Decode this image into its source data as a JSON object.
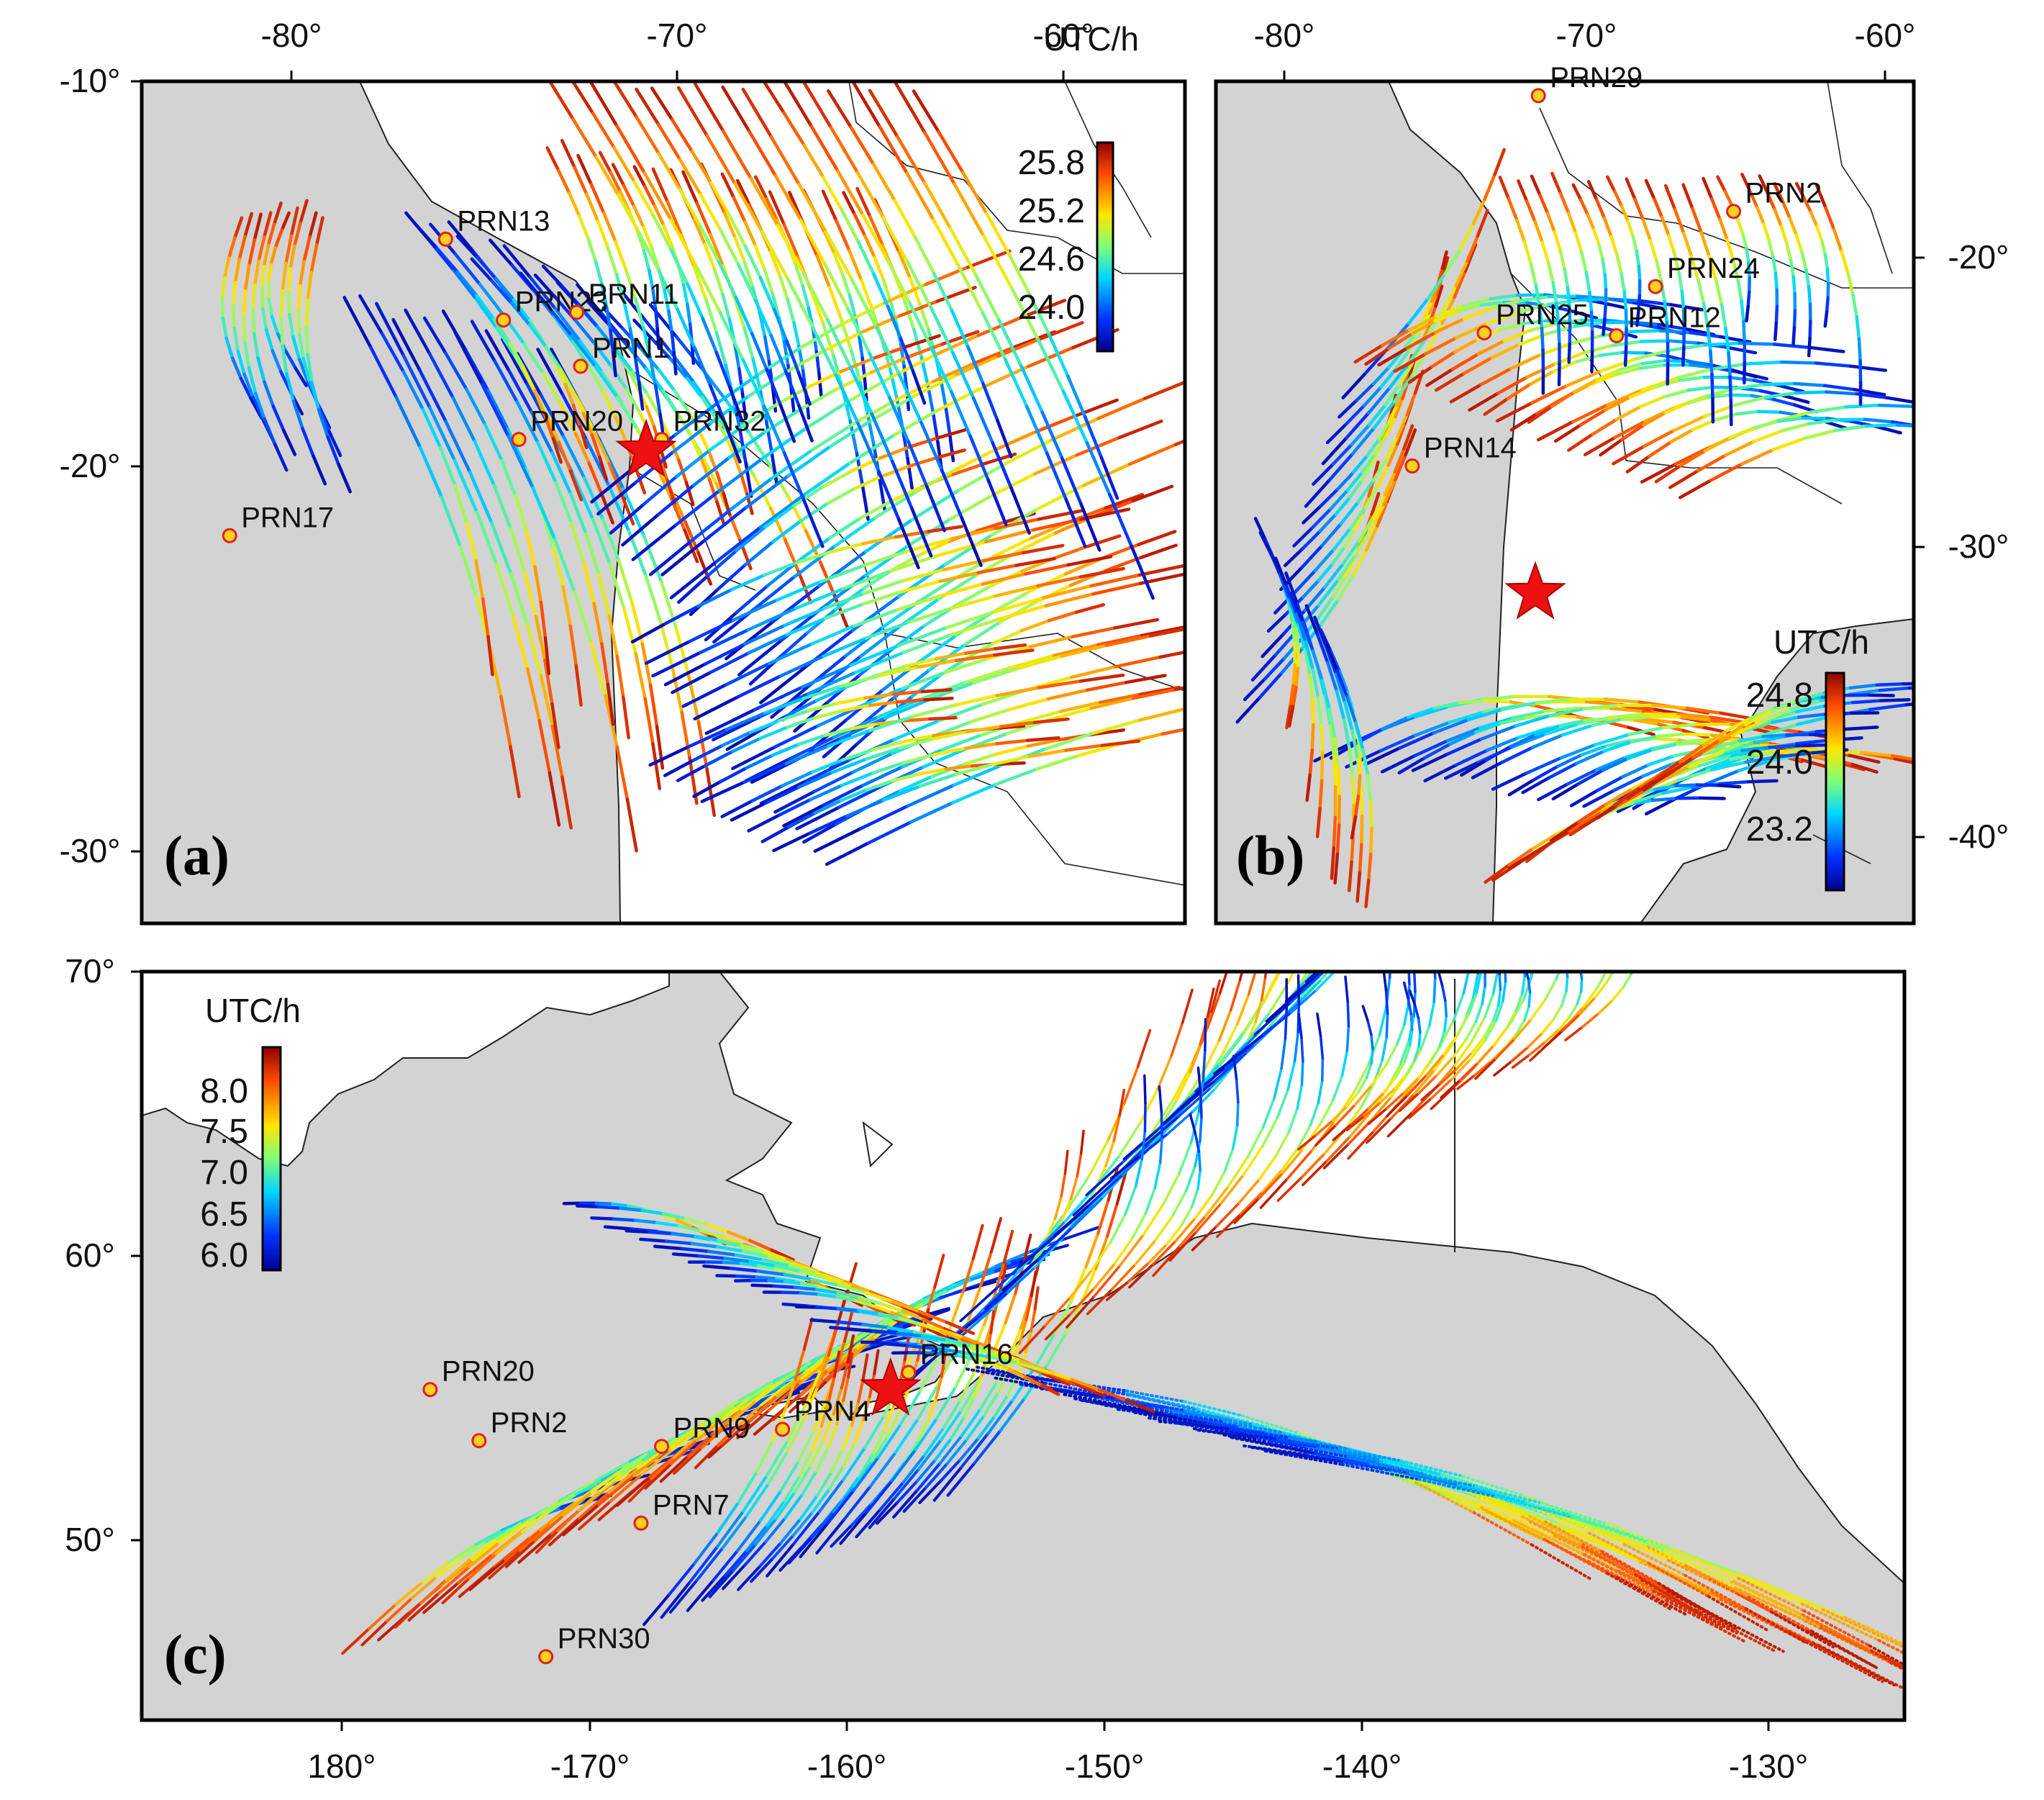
{
  "panels": [
    {
      "id": "a",
      "label": "(a)",
      "x_ticks": [
        "-80°",
        "-70°",
        "-60°"
      ],
      "y_ticks": [
        "-10°",
        "-20°",
        "-30°"
      ],
      "y_tick_side": "left",
      "x_tick_side": "top",
      "colorbar": {
        "title": "UTC/h",
        "ticks": [
          "25.8",
          "25.2",
          "24.6",
          "24.0"
        ],
        "range": [
          23.6,
          26.1
        ]
      },
      "epicenter": {
        "lon": -70.8,
        "lat": -19.6
      },
      "stations": [
        {
          "label": "PRN13",
          "lon": -76.0,
          "lat": -14.1
        },
        {
          "label": "PRN23",
          "lon": -74.5,
          "lat": -16.2
        },
        {
          "label": "PRN11",
          "lon": -72.6,
          "lat": -16.0
        },
        {
          "label": "PRN1",
          "lon": -72.5,
          "lat": -17.4
        },
        {
          "label": "PRN20",
          "lon": -74.1,
          "lat": -19.3
        },
        {
          "label": "PRN32",
          "lon": -70.4,
          "lat": -19.3
        },
        {
          "label": "PRN17",
          "lon": -81.6,
          "lat": -21.8
        }
      ]
    },
    {
      "id": "b",
      "label": "(b)",
      "x_ticks": [
        "-80°",
        "-70°",
        "-60°"
      ],
      "y_ticks": [
        "-20°",
        "-30°",
        "-40°"
      ],
      "y_tick_side": "right",
      "x_tick_side": "top",
      "colorbar": {
        "title": "UTC/h",
        "ticks": [
          "24.8",
          "24.0",
          "23.2"
        ],
        "range": [
          22.5,
          25.1
        ]
      },
      "epicenter": {
        "lon": -71.7,
        "lat": -31.6
      },
      "stations": [
        {
          "label": "PRN29",
          "lon": -71.6,
          "lat": -14.4
        },
        {
          "label": "PRN2",
          "lon": -65.1,
          "lat": -18.4
        },
        {
          "label": "PRN24",
          "lon": -67.7,
          "lat": -21.0
        },
        {
          "label": "PRN25",
          "lon": -73.4,
          "lat": -22.6
        },
        {
          "label": "PRN12",
          "lon": -69.0,
          "lat": -22.7
        },
        {
          "label": "PRN14",
          "lon": -75.8,
          "lat": -27.2
        }
      ]
    },
    {
      "id": "c",
      "label": "(c)",
      "x_ticks": [
        "180°",
        "-170°",
        "-160°",
        "-150°",
        "-140°",
        "-130°"
      ],
      "y_ticks": [
        "70°",
        "60°",
        "50°"
      ],
      "y_tick_side": "left",
      "x_tick_side": "bottom",
      "colorbar": {
        "title": "UTC/h",
        "ticks": [
          "8.0",
          "7.5",
          "7.0",
          "6.5",
          "6.0"
        ],
        "range": [
          5.9,
          8.5
        ]
      },
      "epicenter": {
        "lon": -158.3,
        "lat": 55.3
      },
      "stations": [
        {
          "label": "PRN16",
          "lon": -157.6,
          "lat": 55.9
        },
        {
          "label": "PRN20",
          "lon": -176.2,
          "lat": 55.3
        },
        {
          "label": "PRN2",
          "lon": -174.3,
          "lat": 53.5
        },
        {
          "label": "PRN9",
          "lon": -167.2,
          "lat": 53.3
        },
        {
          "label": "PRN4",
          "lon": -162.5,
          "lat": 53.9
        },
        {
          "label": "PRN7",
          "lon": -168.0,
          "lat": 50.6
        },
        {
          "label": "PRN30",
          "lon": -171.7,
          "lat": 45.9
        }
      ]
    }
  ],
  "colors": {
    "land": "#d3d3d3",
    "sea": "#ffffff",
    "coast": "#222222",
    "epicenter": "#ee1111",
    "station_fill": "#ffd21f",
    "station_stroke": "#e02020"
  }
}
